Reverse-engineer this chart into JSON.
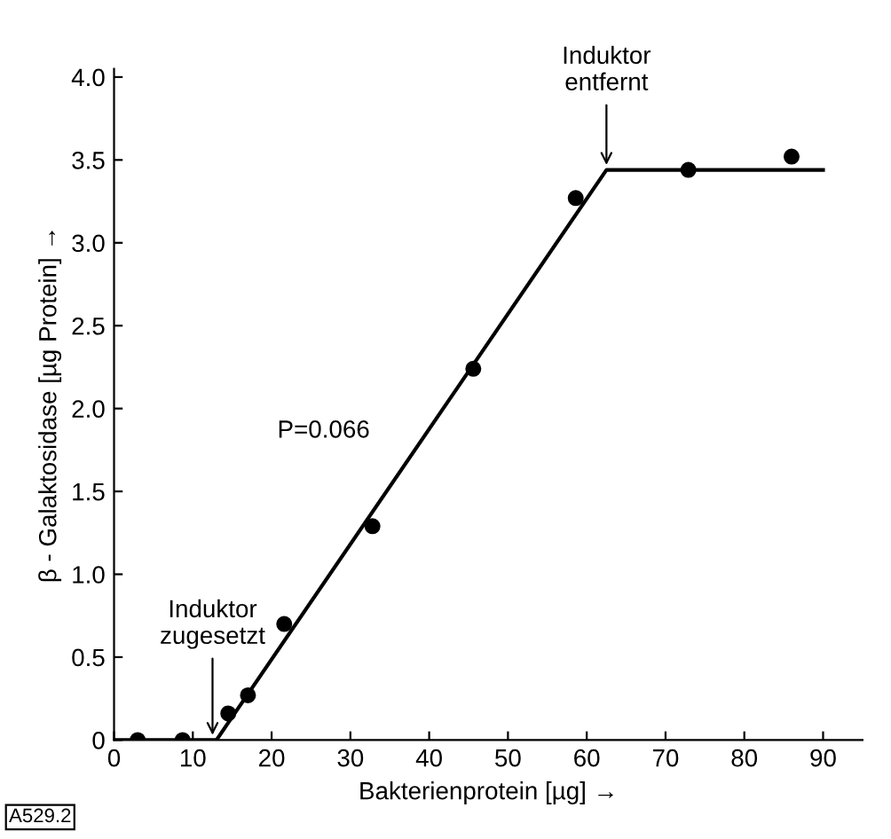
{
  "chart_data": {
    "type": "scatter",
    "xlabel": "Bakterienprotein [µg] →",
    "ylabel": "β - Galaktosidase [µg Protein] →",
    "xlim": [
      0,
      95
    ],
    "ylim": [
      0,
      4.05
    ],
    "xticks": [
      0,
      10,
      20,
      30,
      40,
      50,
      60,
      70,
      80,
      90
    ],
    "yticks": [
      {
        "value": 0,
        "label": "0"
      },
      0.5,
      {
        "value": 1,
        "label": "1.0"
      },
      1.5,
      {
        "value": 2,
        "label": "2.0"
      },
      2.5,
      {
        "value": 3,
        "label": "3.0"
      },
      3.5,
      {
        "value": 4,
        "label": "4.0"
      }
    ],
    "grid": false,
    "legend": false,
    "marker": "circle",
    "series": [
      {
        "color": "#000000",
        "x": [
          3,
          8.7,
          14.5,
          17,
          21.6,
          32.8,
          45.6,
          58.6,
          72.9,
          86
        ],
        "values": [
          0,
          0,
          0.16,
          0.27,
          0.7,
          1.29,
          2.24,
          3.27,
          3.44,
          3.52
        ]
      },
      {
        "type": "line",
        "color": "#000000",
        "marker": "none",
        "line_style": "solid",
        "x": [
          0,
          13,
          62.5,
          90
        ],
        "values": [
          0,
          0,
          3.44,
          3.44
        ]
      }
    ],
    "annotations": [
      {
        "text": "Induktor\nzugesetzt",
        "x": 12.5,
        "y": 0
      },
      {
        "text": "Induktor\nentfernt",
        "x": 62.5,
        "y": 3.44
      },
      "P=0.066",
      "A529.2"
    ]
  }
}
